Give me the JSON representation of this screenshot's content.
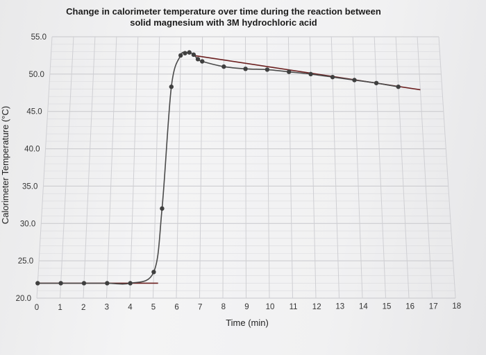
{
  "chart_data": {
    "type": "scatter",
    "title_line1": "Change in calorimeter temperature over time during the reaction between",
    "title_line2": "solid magnesium with 3M hydrochloric acid",
    "xlabel": "Time (min)",
    "ylabel": "Calorimeter Temperature (°C)",
    "xlim": [
      0,
      18
    ],
    "ylim": [
      20,
      55
    ],
    "x_ticks": [
      0,
      1,
      2,
      3,
      4,
      5,
      6,
      7,
      8,
      9,
      10,
      11,
      12,
      13,
      14,
      15,
      16,
      17,
      18
    ],
    "x_tick_labels": [
      "0",
      "1",
      "2",
      "3",
      "4",
      "5",
      "6",
      "7",
      "8",
      "9",
      "10",
      "11",
      "12",
      "13",
      "14",
      "15",
      "16",
      "17",
      "18"
    ],
    "y_ticks": [
      20,
      25,
      30,
      35,
      40,
      45,
      50,
      55
    ],
    "y_tick_labels": [
      "20.0",
      "25.0",
      "30.0",
      "35.0",
      "40.0",
      "45.0",
      "50.0",
      "55.0"
    ],
    "grid": true,
    "series": [
      {
        "points": [
          [
            0,
            22.0
          ],
          [
            1,
            22.0
          ],
          [
            2,
            22.0
          ],
          [
            3,
            22.0
          ],
          [
            4,
            22.0
          ],
          [
            5,
            23.5
          ],
          [
            5.3,
            32.0
          ],
          [
            5.6,
            48.3
          ],
          [
            6.0,
            52.5
          ],
          [
            6.2,
            52.8
          ],
          [
            6.4,
            52.9
          ],
          [
            6.6,
            52.6
          ],
          [
            6.8,
            52.0
          ],
          [
            7.0,
            51.7
          ],
          [
            8,
            51.0
          ],
          [
            9,
            50.7
          ],
          [
            10,
            50.6
          ],
          [
            11,
            50.3
          ],
          [
            12,
            50.0
          ],
          [
            13,
            49.6
          ],
          [
            14,
            49.2
          ],
          [
            15,
            48.8
          ],
          [
            16,
            48.3
          ]
        ],
        "color": "#4a4a4a",
        "marker_color": "#3f3f3f"
      }
    ],
    "trendlines": [
      {
        "points": [
          [
            0,
            22.0
          ],
          [
            5.2,
            22.0
          ]
        ],
        "color": "#6b1f1f"
      },
      {
        "points": [
          [
            6.6,
            52.5
          ],
          [
            17.0,
            47.9
          ]
        ],
        "color": "#6b1f1f"
      }
    ]
  }
}
